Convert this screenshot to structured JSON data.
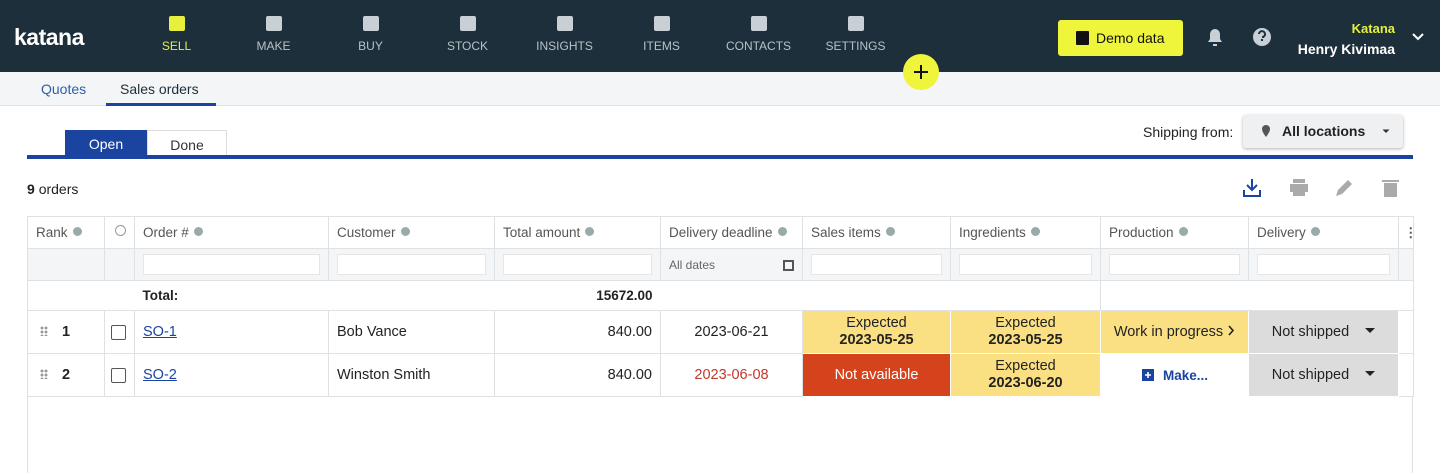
{
  "nav": {
    "logo": "katana",
    "items": [
      "SELL",
      "MAKE",
      "BUY",
      "STOCK",
      "INSIGHTS",
      "ITEMS",
      "CONTACTS",
      "SETTINGS"
    ],
    "demo": "Demo data",
    "company": "Katana",
    "user": "Henry Kivimaa"
  },
  "tabs": [
    "Quotes",
    "Sales orders"
  ],
  "status_tabs": [
    "Open",
    "Done"
  ],
  "shipping": {
    "label": "Shipping from:",
    "value": "All locations"
  },
  "count": {
    "number": "9",
    "label": "orders"
  },
  "table": {
    "headers": [
      "Rank",
      "Order #",
      "Customer",
      "Total amount",
      "Delivery deadline",
      "Sales items",
      "Ingredients",
      "Production",
      "Delivery"
    ],
    "date_filter": "All dates",
    "total_label": "Total:",
    "total": "15672.00",
    "rows": [
      {
        "rank": "1",
        "order": "SO-1",
        "customer": "Bob Vance",
        "amount": "840.00",
        "deadline": "2023-06-21",
        "sales_items": {
          "status": "Expected",
          "date": "2023-05-25"
        },
        "ingredients": {
          "status": "Expected",
          "date": "2023-05-25"
        },
        "production": "Work in progress",
        "delivery": "Not shipped"
      },
      {
        "rank": "2",
        "order": "SO-2",
        "customer": "Winston Smith",
        "amount": "840.00",
        "deadline": "2023-06-08",
        "sales_items": {
          "status": "Not available"
        },
        "ingredients": {
          "status": "Expected",
          "date": "2023-06-20"
        },
        "production": "Make...",
        "delivery": "Not shipped"
      }
    ]
  }
}
